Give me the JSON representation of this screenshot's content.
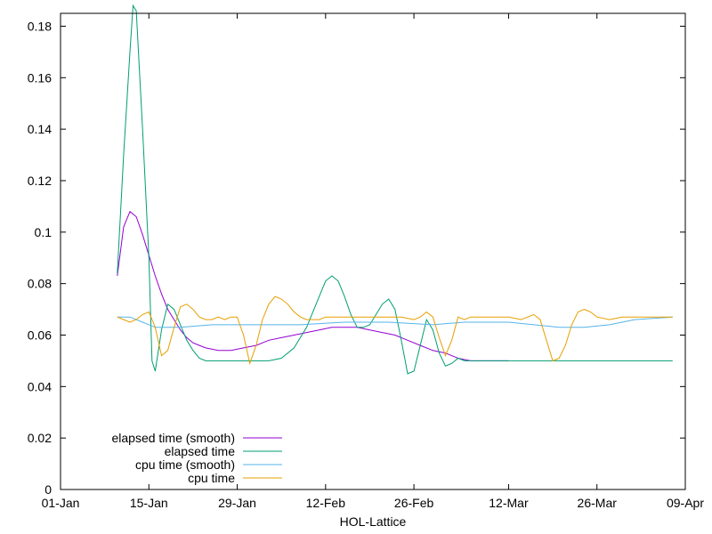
{
  "chart_data": {
    "type": "line",
    "title": "",
    "xlabel": "HOL-Lattice",
    "ylabel": "",
    "xlim": [
      "2024-01-01",
      "2024-04-09"
    ],
    "ylim": [
      0,
      0.185
    ],
    "y_ticks": [
      0,
      0.02,
      0.04,
      0.06,
      0.08,
      0.1,
      0.12,
      0.14,
      0.16,
      0.18
    ],
    "y_tick_labels": [
      "0",
      "0.02",
      "0.04",
      "0.06",
      "0.08",
      "0.1",
      "0.12",
      "0.14",
      "0.16",
      "0.18"
    ],
    "x_ticks": [
      "2024-01-01",
      "2024-01-15",
      "2024-01-29",
      "2024-02-12",
      "2024-02-26",
      "2024-03-12",
      "2024-03-26",
      "2024-04-09"
    ],
    "x_tick_labels": [
      "01-Jan",
      "15-Jan",
      "29-Jan",
      "12-Feb",
      "26-Feb",
      "12-Mar",
      "26-Mar",
      "09-Apr"
    ],
    "grid": false,
    "legend_position": "bottom-left",
    "series": [
      {
        "name": "elapsed time (smooth)",
        "color": "#9400d3",
        "points": [
          [
            "2024-01-10",
            0.083
          ],
          [
            "2024-01-11",
            0.102
          ],
          [
            "2024-01-12",
            0.108
          ],
          [
            "2024-01-13",
            0.106
          ],
          [
            "2024-01-14",
            0.099
          ],
          [
            "2024-01-15",
            0.091
          ],
          [
            "2024-01-16",
            0.083
          ],
          [
            "2024-01-17",
            0.076
          ],
          [
            "2024-01-18",
            0.07
          ],
          [
            "2024-01-19",
            0.066
          ],
          [
            "2024-01-20",
            0.062
          ],
          [
            "2024-01-21",
            0.059
          ],
          [
            "2024-01-22",
            0.057
          ],
          [
            "2024-01-23",
            0.056
          ],
          [
            "2024-01-24",
            0.055
          ],
          [
            "2024-01-26",
            0.054
          ],
          [
            "2024-01-28",
            0.054
          ],
          [
            "2024-01-30",
            0.055
          ],
          [
            "2024-02-01",
            0.056
          ],
          [
            "2024-02-03",
            0.058
          ],
          [
            "2024-02-05",
            0.059
          ],
          [
            "2024-02-07",
            0.06
          ],
          [
            "2024-02-09",
            0.061
          ],
          [
            "2024-02-11",
            0.062
          ],
          [
            "2024-02-13",
            0.063
          ],
          [
            "2024-02-15",
            0.063
          ],
          [
            "2024-02-17",
            0.063
          ],
          [
            "2024-02-19",
            0.062
          ],
          [
            "2024-02-21",
            0.061
          ],
          [
            "2024-02-23",
            0.06
          ],
          [
            "2024-02-25",
            0.058
          ],
          [
            "2024-02-27",
            0.056
          ],
          [
            "2024-02-29",
            0.054
          ],
          [
            "2024-03-02",
            0.053
          ],
          [
            "2024-03-04",
            0.051
          ],
          [
            "2024-03-06",
            0.05
          ],
          [
            "2024-03-08",
            0.05
          ],
          [
            "2024-03-12",
            0.05
          ]
        ]
      },
      {
        "name": "elapsed time",
        "color": "#009e73",
        "points": [
          [
            "2024-01-10",
            0.084
          ],
          [
            "2024-01-11",
            0.13
          ],
          [
            "2024-01-12",
            0.17
          ],
          [
            "2024-01-12T12",
            0.188
          ],
          [
            "2024-01-13",
            0.186
          ],
          [
            "2024-01-14",
            0.14
          ],
          [
            "2024-01-15",
            0.09
          ],
          [
            "2024-01-15T12",
            0.05
          ],
          [
            "2024-01-16",
            0.046
          ],
          [
            "2024-01-17",
            0.062
          ],
          [
            "2024-01-18",
            0.072
          ],
          [
            "2024-01-19",
            0.07
          ],
          [
            "2024-01-20",
            0.064
          ],
          [
            "2024-01-21",
            0.058
          ],
          [
            "2024-01-22",
            0.054
          ],
          [
            "2024-01-23",
            0.051
          ],
          [
            "2024-01-24",
            0.05
          ],
          [
            "2024-01-26",
            0.05
          ],
          [
            "2024-01-30",
            0.05
          ],
          [
            "2024-02-03",
            0.05
          ],
          [
            "2024-02-05",
            0.051
          ],
          [
            "2024-02-07",
            0.055
          ],
          [
            "2024-02-09",
            0.063
          ],
          [
            "2024-02-11",
            0.075
          ],
          [
            "2024-02-12",
            0.081
          ],
          [
            "2024-02-13",
            0.083
          ],
          [
            "2024-02-14",
            0.081
          ],
          [
            "2024-02-15",
            0.075
          ],
          [
            "2024-02-16",
            0.068
          ],
          [
            "2024-02-17",
            0.063
          ],
          [
            "2024-02-18",
            0.063
          ],
          [
            "2024-02-19",
            0.064
          ],
          [
            "2024-02-20",
            0.068
          ],
          [
            "2024-02-21",
            0.072
          ],
          [
            "2024-02-22",
            0.074
          ],
          [
            "2024-02-23",
            0.07
          ],
          [
            "2024-02-24",
            0.058
          ],
          [
            "2024-02-25",
            0.045
          ],
          [
            "2024-02-26",
            0.046
          ],
          [
            "2024-02-27",
            0.056
          ],
          [
            "2024-02-28",
            0.066
          ],
          [
            "2024-02-29",
            0.062
          ],
          [
            "2024-03-01",
            0.053
          ],
          [
            "2024-03-02",
            0.048
          ],
          [
            "2024-03-03",
            0.049
          ],
          [
            "2024-03-04",
            0.051
          ],
          [
            "2024-03-05",
            0.05
          ],
          [
            "2024-03-12",
            0.05
          ],
          [
            "2024-03-26",
            0.05
          ],
          [
            "2024-04-07",
            0.05
          ]
        ]
      },
      {
        "name": "cpu time (smooth)",
        "color": "#56b4e9",
        "points": [
          [
            "2024-01-10",
            0.067
          ],
          [
            "2024-01-12",
            0.067
          ],
          [
            "2024-01-14",
            0.065
          ],
          [
            "2024-01-16",
            0.063
          ],
          [
            "2024-01-20",
            0.063
          ],
          [
            "2024-01-25",
            0.064
          ],
          [
            "2024-02-01",
            0.064
          ],
          [
            "2024-02-08",
            0.064
          ],
          [
            "2024-02-15",
            0.065
          ],
          [
            "2024-02-22",
            0.065
          ],
          [
            "2024-02-29",
            0.064
          ],
          [
            "2024-03-05",
            0.065
          ],
          [
            "2024-03-12",
            0.065
          ],
          [
            "2024-03-16",
            0.064
          ],
          [
            "2024-03-20",
            0.063
          ],
          [
            "2024-03-24",
            0.063
          ],
          [
            "2024-03-28",
            0.064
          ],
          [
            "2024-04-01",
            0.066
          ],
          [
            "2024-04-07",
            0.067
          ]
        ]
      },
      {
        "name": "cpu time",
        "color": "#e69f00",
        "points": [
          [
            "2024-01-10",
            0.067
          ],
          [
            "2024-01-11",
            0.066
          ],
          [
            "2024-01-12",
            0.065
          ],
          [
            "2024-01-13",
            0.066
          ],
          [
            "2024-01-14",
            0.068
          ],
          [
            "2024-01-15",
            0.069
          ],
          [
            "2024-01-16",
            0.063
          ],
          [
            "2024-01-17",
            0.052
          ],
          [
            "2024-01-18",
            0.054
          ],
          [
            "2024-01-19",
            0.063
          ],
          [
            "2024-01-20",
            0.071
          ],
          [
            "2024-01-21",
            0.072
          ],
          [
            "2024-01-22",
            0.07
          ],
          [
            "2024-01-23",
            0.067
          ],
          [
            "2024-01-24",
            0.066
          ],
          [
            "2024-01-25",
            0.066
          ],
          [
            "2024-01-26",
            0.067
          ],
          [
            "2024-01-27",
            0.066
          ],
          [
            "2024-01-28",
            0.067
          ],
          [
            "2024-01-29",
            0.067
          ],
          [
            "2024-01-30",
            0.06
          ],
          [
            "2024-01-31",
            0.049
          ],
          [
            "2024-02-01",
            0.056
          ],
          [
            "2024-02-02",
            0.066
          ],
          [
            "2024-02-03",
            0.072
          ],
          [
            "2024-02-04",
            0.075
          ],
          [
            "2024-02-05",
            0.074
          ],
          [
            "2024-02-06",
            0.072
          ],
          [
            "2024-02-07",
            0.069
          ],
          [
            "2024-02-08",
            0.067
          ],
          [
            "2024-02-09",
            0.066
          ],
          [
            "2024-02-11",
            0.066
          ],
          [
            "2024-02-12",
            0.067
          ],
          [
            "2024-02-15",
            0.067
          ],
          [
            "2024-02-20",
            0.067
          ],
          [
            "2024-02-24",
            0.067
          ],
          [
            "2024-02-26",
            0.066
          ],
          [
            "2024-02-27",
            0.067
          ],
          [
            "2024-02-28",
            0.069
          ],
          [
            "2024-02-29",
            0.067
          ],
          [
            "2024-03-01",
            0.059
          ],
          [
            "2024-03-02",
            0.052
          ],
          [
            "2024-03-03",
            0.058
          ],
          [
            "2024-03-04",
            0.067
          ],
          [
            "2024-03-05",
            0.066
          ],
          [
            "2024-03-06",
            0.067
          ],
          [
            "2024-03-12",
            0.067
          ],
          [
            "2024-03-14",
            0.066
          ],
          [
            "2024-03-16",
            0.068
          ],
          [
            "2024-03-17",
            0.066
          ],
          [
            "2024-03-18",
            0.058
          ],
          [
            "2024-03-19",
            0.05
          ],
          [
            "2024-03-20",
            0.051
          ],
          [
            "2024-03-21",
            0.056
          ],
          [
            "2024-03-22",
            0.064
          ],
          [
            "2024-03-23",
            0.069
          ],
          [
            "2024-03-24",
            0.07
          ],
          [
            "2024-03-25",
            0.069
          ],
          [
            "2024-03-26",
            0.067
          ],
          [
            "2024-03-28",
            0.066
          ],
          [
            "2024-03-30",
            0.067
          ],
          [
            "2024-04-01",
            0.067
          ],
          [
            "2024-04-07",
            0.067
          ]
        ]
      }
    ]
  }
}
